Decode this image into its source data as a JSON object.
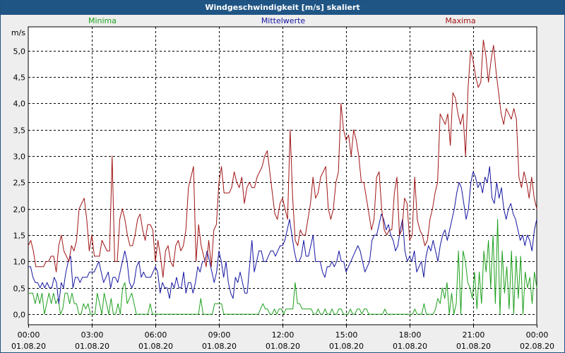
{
  "window_title": "Windgeschwindigkeit [m/s] skaliert",
  "chart_data": {
    "type": "line",
    "title": "Windgeschwindigkeit [m/s] skaliert",
    "ylabel": "m/s",
    "ylim": [
      -0.2,
      5.45
    ],
    "yticks": [
      "0,0",
      "0,5",
      "1,0",
      "1,5",
      "2,0",
      "2,5",
      "3,0",
      "3,5",
      "4,0",
      "4,5",
      "5,0"
    ],
    "ytick_values": [
      0,
      0.5,
      1.0,
      1.5,
      2.0,
      2.5,
      3.0,
      3.5,
      4.0,
      4.5,
      5.0
    ],
    "x_range_hours": [
      0,
      24
    ],
    "x_ticks": [
      {
        "hour": 0,
        "time": "00:00",
        "date": "01.08.20"
      },
      {
        "hour": 3,
        "time": "03:00",
        "date": "01.08.20"
      },
      {
        "hour": 6,
        "time": "06:00",
        "date": "01.08.20"
      },
      {
        "hour": 9,
        "time": "09:00",
        "date": "01.08.20"
      },
      {
        "hour": 12,
        "time": "12:00",
        "date": "01.08.20"
      },
      {
        "hour": 15,
        "time": "15:00",
        "date": "01.08.20"
      },
      {
        "hour": 18,
        "time": "18:00",
        "date": "01.08.20"
      },
      {
        "hour": 21,
        "time": "21:00",
        "date": "01.08.20"
      },
      {
        "hour": 24,
        "time": "00:00",
        "date": "02.08.20"
      }
    ],
    "grid": true,
    "series": [
      {
        "name": "Minima",
        "color": "#1ea01e",
        "legend_position": "left",
        "values": [
          0.4,
          0.4,
          0.4,
          0.2,
          0.4,
          0.2,
          0.4,
          0.0,
          0.2,
          0.4,
          0.2,
          0.4,
          0.2,
          0.3,
          0.0,
          0.1,
          0.4,
          0.4,
          0.2,
          0.4,
          0.2,
          0.2,
          0.0,
          0.0,
          0.2,
          0.1,
          0.2,
          0.0,
          0.0,
          0.0,
          0.4,
          0.2,
          0.0,
          0.4,
          0.2,
          0.0,
          0.3,
          0.0,
          0.0,
          0.2,
          0.0,
          0.5,
          0.6,
          0.2,
          0.3,
          0.4,
          0.2,
          0.0,
          0.0,
          0.0,
          0.0,
          0.0,
          0.0,
          0.2,
          0.0,
          0.0,
          0.0,
          0.0,
          0.0,
          0.0,
          0.0,
          0.0,
          0.0,
          0.0,
          0.0,
          0.0,
          0.0,
          0.0,
          0.0,
          0.0,
          0.0,
          0.0,
          0.0,
          0.0,
          0.0,
          0.3,
          0.0,
          0.0,
          0.0,
          0.0,
          0.0,
          0.2,
          0.2,
          0.2,
          0.2,
          0.0,
          0.0,
          0.0,
          0.0,
          0.0,
          0.0,
          0.0,
          0.0,
          0.0,
          0.0,
          0.0,
          0.0,
          0.0,
          0.0,
          0.0,
          0.0,
          0.1,
          0.2,
          0.1,
          0.1,
          0.0,
          0.0,
          0.1,
          0.0,
          0.1,
          0.1,
          0.0,
          0.1,
          0.1,
          0.1,
          0.1,
          0.6,
          0.2,
          0.2,
          0.1,
          0.1,
          0.1,
          0.1,
          0.1,
          0.0,
          0.0,
          0.1,
          0.0,
          0.0,
          0.1,
          0.0,
          0.0,
          0.1,
          0.0,
          0.0,
          0.1,
          0.1,
          0.0,
          0.0,
          0.0,
          0.1,
          0.0,
          0.0,
          0.1,
          0.1,
          0.0,
          0.1,
          0.1,
          0.0,
          0.0,
          0.0,
          0.0,
          0.0,
          0.0,
          0.0,
          0.1,
          0.0,
          0.0,
          0.0,
          0.0,
          0.0,
          0.0,
          0.0,
          0.0,
          0.0,
          0.0,
          0.0,
          0.0,
          0.1,
          0.0,
          0.0,
          0.0,
          0.2,
          0.0,
          0.0,
          0.0,
          0.0,
          0.1,
          0.3,
          0.2,
          0.5,
          0.3,
          0.6,
          0.0,
          0.4,
          0.0,
          0.2,
          1.2,
          0.0,
          1.2,
          1.0,
          0.6,
          0.5,
          0.3,
          0.8,
          0.1,
          0.8,
          0.2,
          1.2,
          0.8,
          1.4,
          0.5,
          1.5,
          0.2,
          1.8,
          0.0,
          1.2,
          0.4,
          0.9,
          0.1,
          1.2,
          0.0,
          1.1,
          0.3,
          1.1,
          0.0,
          0.8,
          0.5,
          0.7,
          0.2,
          0.8,
          0.5
        ]
      },
      {
        "name": "Mittelwerte",
        "color": "#1414a0",
        "legend_position": "center",
        "values": [
          0.9,
          0.9,
          0.7,
          0.6,
          0.6,
          0.5,
          0.6,
          0.5,
          0.6,
          0.5,
          0.5,
          0.7,
          0.6,
          0.2,
          0.6,
          0.5,
          0.8,
          1.0,
          1.1,
          0.5,
          0.7,
          0.7,
          0.6,
          0.7,
          0.7,
          0.7,
          0.8,
          0.8,
          0.8,
          0.9,
          1.0,
          0.8,
          0.6,
          0.7,
          0.8,
          0.5,
          0.7,
          0.7,
          0.6,
          0.8,
          1.0,
          1.2,
          1.0,
          0.6,
          0.5,
          0.6,
          0.9,
          1.0,
          0.7,
          0.8,
          0.7,
          0.7,
          0.7,
          0.8,
          0.9,
          0.8,
          0.4,
          0.6,
          0.5,
          0.5,
          0.3,
          0.6,
          0.5,
          0.7,
          0.5,
          0.5,
          0.8,
          0.4,
          0.6,
          0.6,
          0.4,
          0.6,
          0.9,
          0.8,
          1.0,
          1.0,
          1.2,
          1.0,
          0.8,
          0.6,
          0.8,
          1.2,
          1.0,
          0.7,
          1.0,
          0.6,
          0.4,
          0.3,
          0.7,
          0.6,
          0.8,
          0.6,
          0.4,
          0.4,
          0.9,
          1.4,
          0.8,
          1.0,
          1.2,
          1.2,
          1.0,
          1.0,
          1.1,
          1.2,
          1.2,
          1.1,
          1.2,
          1.3,
          1.3,
          1.4,
          1.6,
          1.8,
          1.5,
          1.2,
          1.0,
          1.0,
          1.1,
          1.4,
          1.1,
          1.1,
          1.3,
          1.5,
          1.0,
          1.0,
          1.0,
          0.8,
          0.7,
          0.9,
          0.9,
          1.0,
          0.9,
          1.0,
          1.2,
          1.0,
          1.0,
          0.8,
          0.9,
          1.0,
          1.1,
          1.2,
          1.3,
          1.2,
          1.0,
          0.8,
          0.9,
          1.0,
          1.4,
          1.5,
          1.5,
          1.7,
          1.9,
          1.8,
          1.6,
          1.7,
          1.5,
          1.4,
          1.2,
          1.3,
          1.6,
          1.8,
          1.2,
          1.0,
          1.1,
          1.0,
          1.2,
          0.8,
          0.9,
          1.0,
          0.7,
          1.1,
          1.3,
          1.2,
          1.4,
          1.2,
          1.0,
          1.3,
          1.5,
          1.6,
          1.4,
          1.6,
          1.8,
          2.0,
          2.3,
          2.5,
          2.4,
          2.1,
          1.8,
          2.0,
          2.5,
          2.7,
          2.6,
          2.4,
          2.5,
          2.3,
          2.6,
          2.5,
          2.8,
          2.2,
          2.1,
          2.5,
          2.2,
          2.4,
          2.0,
          1.8,
          2.0,
          2.1,
          1.9,
          1.8,
          1.6,
          1.4,
          1.5,
          1.3,
          1.5,
          1.4,
          1.2,
          1.6,
          1.8
        ]
      },
      {
        "name": "Maxima",
        "color": "#a01414",
        "legend_position": "right",
        "values": [
          1.3,
          1.4,
          1.2,
          0.9,
          0.9,
          0.9,
          0.9,
          1.0,
          1.0,
          1.1,
          1.1,
          0.8,
          1.3,
          1.5,
          1.2,
          1.1,
          1.0,
          1.3,
          1.2,
          1.4,
          2.0,
          2.1,
          2.2,
          1.8,
          1.2,
          1.5,
          1.1,
          1.1,
          1.1,
          1.4,
          1.3,
          1.2,
          1.2,
          3.0,
          1.0,
          1.0,
          1.8,
          2.0,
          1.8,
          1.5,
          1.3,
          1.3,
          1.5,
          1.8,
          1.9,
          1.6,
          1.4,
          1.7,
          1.7,
          1.6,
          1.0,
          1.4,
          1.1,
          0.7,
          1.2,
          1.3,
          1.0,
          0.9,
          1.3,
          1.4,
          1.2,
          1.3,
          1.6,
          2.4,
          2.6,
          2.8,
          1.0,
          1.7,
          1.3,
          1.1,
          0.9,
          1.4,
          0.9,
          1.6,
          1.7,
          2.5,
          2.8,
          2.3,
          2.3,
          2.3,
          2.4,
          2.7,
          2.5,
          2.4,
          2.6,
          2.1,
          2.4,
          2.5,
          2.4,
          2.4,
          2.6,
          2.7,
          2.8,
          3.0,
          3.1,
          2.7,
          2.3,
          1.9,
          1.8,
          2.1,
          2.2,
          2.0,
          1.8,
          3.5,
          2.2,
          1.4,
          1.3,
          1.6,
          1.5,
          1.5,
          1.8,
          2.1,
          2.6,
          2.2,
          2.3,
          2.6,
          2.7,
          2.8,
          2.0,
          1.8,
          2.0,
          2.5,
          2.7,
          4.0,
          3.5,
          3.3,
          3.4,
          3.0,
          3.5,
          3.3,
          3.0,
          2.5,
          2.5,
          2.2,
          1.9,
          1.6,
          1.8,
          2.6,
          2.7,
          2.0,
          1.6,
          1.5,
          1.6,
          1.6,
          2.3,
          2.6,
          1.5,
          1.6,
          2.2,
          2.1,
          1.4,
          1.5,
          2.6,
          1.8,
          1.6,
          1.5,
          1.3,
          1.4,
          1.8,
          2.0,
          2.3,
          2.5,
          3.8,
          3.7,
          3.6,
          3.8,
          3.2,
          4.2,
          4.1,
          3.8,
          3.6,
          3.8,
          3.0,
          4.3,
          5.0,
          4.8,
          4.5,
          4.3,
          4.4,
          5.2,
          4.9,
          4.4,
          4.8,
          5.1,
          4.6,
          4.2,
          3.8,
          3.6,
          3.9,
          3.8,
          3.7,
          3.9,
          3.7,
          2.6,
          2.4,
          2.7,
          2.5,
          2.2,
          2.6,
          2.2,
          2.0
        ]
      }
    ]
  }
}
